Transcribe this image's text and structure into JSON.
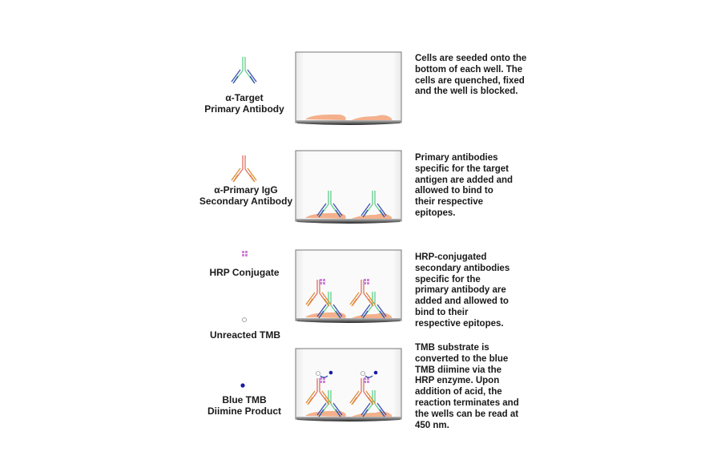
{
  "legend": {
    "primary_antibody": "α-Target\nPrimary Antibody",
    "secondary_antibody": "α-Primary IgG\nSecondary Antibody",
    "hrp": "HRP Conjugate",
    "unreacted_tmb": "Unreacted TMB",
    "blue_tmb": "Blue TMB\nDiimine Product"
  },
  "steps": [
    {
      "text": "Cells are seeded onto the bottom of each well. The cells are quenched, fixed and the well is blocked."
    },
    {
      "text": "Primary antibodies specific for the target antigen are added and allowed to bind to their respective epitopes."
    },
    {
      "text": "HRP-conjugated secondary antibodies specific for the primary antibody are added and allowed to bind to their respective epitopes."
    },
    {
      "text": "TMB substrate is converted to the blue TMB diimine via the HRP enzyme. Upon addition of acid, the reaction terminates and the wells can be read at 450 nm."
    }
  ],
  "colors": {
    "primary_stem": "#5fcf8a",
    "primary_arms": "#3a4fb0",
    "secondary_stem": "#e07060",
    "secondary_arms": "#e08a30",
    "hrp": "#d080d8",
    "cells": "#f4b08c",
    "blue_tmb": "#1a1aa8"
  }
}
